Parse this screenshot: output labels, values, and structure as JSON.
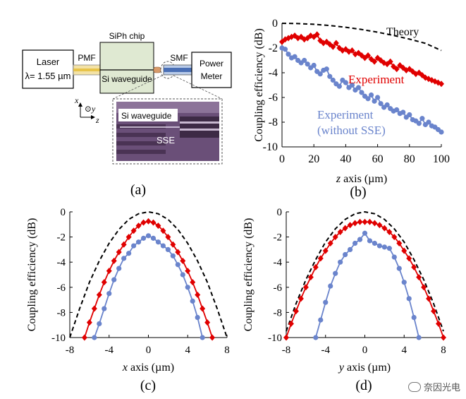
{
  "schematic": {
    "laser_line1": "Laser",
    "laser_line2": "λ= 1.55 µm",
    "pmf": "PMF",
    "chip": "SiPh chip",
    "waveguide": "Si waveguide",
    "smf": "SMF",
    "meter_line1": "Power",
    "meter_line2": "Meter",
    "axis_x": "x",
    "axis_y": "⊙y",
    "axis_z": "z",
    "inset_waveguide": "Si waveguide",
    "inset_sse": "SSE",
    "colors": {
      "laser_box": "#ffffff",
      "chip": "#dfe9d2",
      "pmf_core": "#e8c44a",
      "smf_core": "#4a6fb5",
      "inset_bg": "#6a4f78"
    }
  },
  "panel_labels": {
    "a": "(a)",
    "b": "(b)",
    "c": "(c)",
    "d": "(d)"
  },
  "watermark": "奈因光电",
  "colors": {
    "theory": "#000000",
    "experiment": "#e00000",
    "without_sse": "#6a84cc"
  },
  "chart_data": [
    {
      "id": "b",
      "type": "line",
      "xlabel": "z axis (µm)",
      "ylabel": "Coupling efficiency (dB)",
      "xlim": [
        0,
        100
      ],
      "ylim": [
        -10,
        0
      ],
      "xticks": [
        0,
        20,
        40,
        60,
        80,
        100
      ],
      "yticks": [
        0,
        -2,
        -4,
        -6,
        -8,
        -10
      ],
      "grid": false,
      "annotations": [
        "Theory",
        "Experiment",
        "Experiment",
        "(without SSE)"
      ],
      "series": [
        {
          "name": "Theory",
          "style": "dashed",
          "x": [
            0,
            10,
            20,
            30,
            40,
            50,
            60,
            70,
            80,
            90,
            100
          ],
          "y": [
            0,
            -0.02,
            -0.08,
            -0.18,
            -0.32,
            -0.5,
            -0.72,
            -0.98,
            -1.28,
            -1.62,
            -2.2
          ]
        },
        {
          "name": "Experiment",
          "style": "diamond",
          "x": [
            0,
            2,
            4,
            6,
            8,
            10,
            12,
            14,
            16,
            18,
            20,
            22,
            24,
            26,
            28,
            30,
            32,
            34,
            36,
            38,
            40,
            42,
            44,
            46,
            48,
            50,
            52,
            54,
            56,
            58,
            60,
            62,
            64,
            66,
            68,
            70,
            72,
            74,
            76,
            78,
            80,
            82,
            84,
            86,
            88,
            90,
            92,
            94,
            96,
            98,
            100
          ],
          "y": [
            -1.5,
            -1.3,
            -1.2,
            -1.1,
            -1.0,
            -1.2,
            -1.1,
            -1.3,
            -1.2,
            -1.0,
            -1.1,
            -0.9,
            -1.4,
            -1.6,
            -1.5,
            -1.7,
            -1.9,
            -1.6,
            -2.0,
            -2.2,
            -2.1,
            -2.3,
            -2.2,
            -2.5,
            -2.4,
            -2.6,
            -2.8,
            -2.6,
            -2.9,
            -3.1,
            -2.8,
            -3.0,
            -3.2,
            -3.3,
            -3.1,
            -3.5,
            -3.7,
            -3.4,
            -3.6,
            -3.8,
            -3.7,
            -3.9,
            -4.1,
            -4.0,
            -4.2,
            -4.4,
            -4.5,
            -4.6,
            -4.7,
            -4.8,
            -4.9
          ]
        },
        {
          "name": "Experiment (without SSE)",
          "style": "circle",
          "x": [
            0,
            2,
            4,
            6,
            8,
            10,
            12,
            14,
            16,
            18,
            20,
            22,
            24,
            26,
            28,
            30,
            32,
            34,
            36,
            38,
            40,
            42,
            44,
            46,
            48,
            50,
            52,
            54,
            56,
            58,
            60,
            62,
            64,
            66,
            68,
            70,
            72,
            74,
            76,
            78,
            80,
            82,
            84,
            86,
            88,
            90,
            92,
            94,
            96,
            98,
            100
          ],
          "y": [
            -2.0,
            -2.1,
            -2.5,
            -2.8,
            -2.7,
            -3.0,
            -3.2,
            -3.0,
            -3.3,
            -3.6,
            -3.4,
            -3.9,
            -4.1,
            -3.8,
            -3.7,
            -4.3,
            -4.6,
            -4.9,
            -5.1,
            -4.6,
            -4.8,
            -5.2,
            -5.0,
            -5.4,
            -5.2,
            -5.6,
            -5.9,
            -6.1,
            -5.8,
            -6.3,
            -6.0,
            -6.5,
            -6.8,
            -6.6,
            -6.9,
            -7.1,
            -7.0,
            -7.3,
            -7.2,
            -7.6,
            -7.4,
            -7.8,
            -7.9,
            -8.1,
            -7.7,
            -8.2,
            -8.0,
            -8.3,
            -8.4,
            -8.6,
            -8.8
          ]
        }
      ]
    },
    {
      "id": "c",
      "type": "line",
      "xlabel": "x axis (µm)",
      "ylabel": "Coupling efficiency (dB)",
      "xlim": [
        -8,
        8
      ],
      "ylim": [
        -10,
        0
      ],
      "xticks": [
        -8,
        -4,
        0,
        4,
        8
      ],
      "yticks": [
        0,
        -2,
        -4,
        -6,
        -8,
        -10
      ],
      "grid": false,
      "series": [
        {
          "name": "Theory",
          "style": "dashed",
          "x": [
            -8,
            -7,
            -6,
            -5,
            -4,
            -3,
            -2,
            -1,
            0,
            1,
            2,
            3,
            4,
            5,
            6,
            7,
            8
          ],
          "y": [
            -10,
            -7.7,
            -5.6,
            -3.9,
            -2.5,
            -1.4,
            -0.6,
            -0.15,
            0,
            -0.15,
            -0.6,
            -1.4,
            -2.5,
            -3.9,
            -5.6,
            -7.7,
            -10
          ]
        },
        {
          "name": "Experiment",
          "style": "diamond",
          "x": [
            -6.5,
            -6,
            -5.5,
            -5,
            -4.5,
            -4,
            -3.5,
            -3,
            -2.5,
            -2,
            -1.5,
            -1,
            -0.5,
            0,
            0.5,
            1,
            1.5,
            2,
            2.5,
            3,
            3.5,
            4,
            4.5,
            5,
            5.5,
            6,
            6.5
          ],
          "y": [
            -10,
            -8.8,
            -7.7,
            -6.6,
            -5.6,
            -4.7,
            -3.9,
            -3.2,
            -2.6,
            -2.0,
            -1.5,
            -1.1,
            -0.85,
            -0.75,
            -0.85,
            -1.1,
            -1.5,
            -2.0,
            -2.6,
            -3.2,
            -3.9,
            -4.7,
            -5.6,
            -6.6,
            -7.7,
            -8.8,
            -10
          ]
        },
        {
          "name": "Experiment (without SSE)",
          "style": "circle",
          "x": [
            -5.5,
            -5,
            -4.5,
            -4,
            -3.5,
            -3,
            -2.5,
            -2,
            -1.5,
            -1,
            -0.5,
            0,
            0.5,
            1,
            1.5,
            2,
            2.5,
            3,
            3.5,
            4,
            4.5,
            5,
            5.5
          ],
          "y": [
            -10,
            -8.9,
            -7.7,
            -6.5,
            -5.4,
            -4.5,
            -3.7,
            -3.3,
            -2.7,
            -2.4,
            -2.1,
            -1.9,
            -2.1,
            -2.4,
            -2.7,
            -3.0,
            -3.5,
            -4.2,
            -5.0,
            -6.0,
            -7.1,
            -8.4,
            -10
          ]
        }
      ]
    },
    {
      "id": "d",
      "type": "line",
      "xlabel": "y axis (µm)",
      "ylabel": "Coupling efficiency (dB)",
      "xlim": [
        -8,
        8
      ],
      "ylim": [
        -10,
        0
      ],
      "xticks": [
        -8,
        -4,
        0,
        4,
        8
      ],
      "yticks": [
        0,
        -2,
        -4,
        -6,
        -8,
        -10
      ],
      "grid": false,
      "series": [
        {
          "name": "Theory",
          "style": "dashed",
          "x": [
            -8,
            -7,
            -6,
            -5,
            -4,
            -3,
            -2,
            -1,
            0,
            1,
            2,
            3,
            4,
            5,
            6,
            7,
            8
          ],
          "y": [
            -9.5,
            -7.3,
            -5.4,
            -3.8,
            -2.4,
            -1.35,
            -0.6,
            -0.15,
            0,
            -0.15,
            -0.6,
            -1.35,
            -2.4,
            -3.8,
            -5.4,
            -7.3,
            -9.5
          ]
        },
        {
          "name": "Experiment",
          "style": "diamond",
          "x": [
            -8,
            -7.5,
            -7,
            -6.5,
            -6,
            -5.5,
            -5,
            -4.5,
            -4,
            -3.5,
            -3,
            -2.5,
            -2,
            -1.5,
            -1,
            -0.5,
            0,
            0.5,
            1,
            1.5,
            2,
            2.5,
            3,
            3.5,
            4,
            4.5,
            5,
            5.5,
            6,
            6.5,
            7,
            7.5,
            8
          ],
          "y": [
            -10,
            -8.9,
            -7.9,
            -6.9,
            -6.0,
            -5.2,
            -4.4,
            -3.7,
            -3.1,
            -2.5,
            -2.0,
            -1.6,
            -1.3,
            -1.05,
            -0.9,
            -0.8,
            -0.8,
            -0.8,
            -0.9,
            -1.05,
            -1.3,
            -1.6,
            -2.0,
            -2.5,
            -3.1,
            -3.7,
            -4.4,
            -5.2,
            -6.0,
            -6.9,
            -7.9,
            -8.9,
            -10
          ]
        },
        {
          "name": "Experiment (without SSE)",
          "style": "circle",
          "x": [
            -5,
            -4.5,
            -4,
            -3.5,
            -3,
            -2.5,
            -2,
            -1.5,
            -1,
            -0.5,
            0,
            0.5,
            1,
            1.5,
            2,
            2.5,
            3,
            3.5,
            4,
            4.5,
            5,
            5.5
          ],
          "y": [
            -10,
            -8.6,
            -7.2,
            -5.9,
            -4.9,
            -4.0,
            -3.4,
            -3.0,
            -2.5,
            -2.2,
            -1.7,
            -2.3,
            -2.5,
            -2.7,
            -2.8,
            -2.9,
            -3.6,
            -4.5,
            -5.6,
            -6.9,
            -8.4,
            -10
          ]
        }
      ]
    }
  ]
}
